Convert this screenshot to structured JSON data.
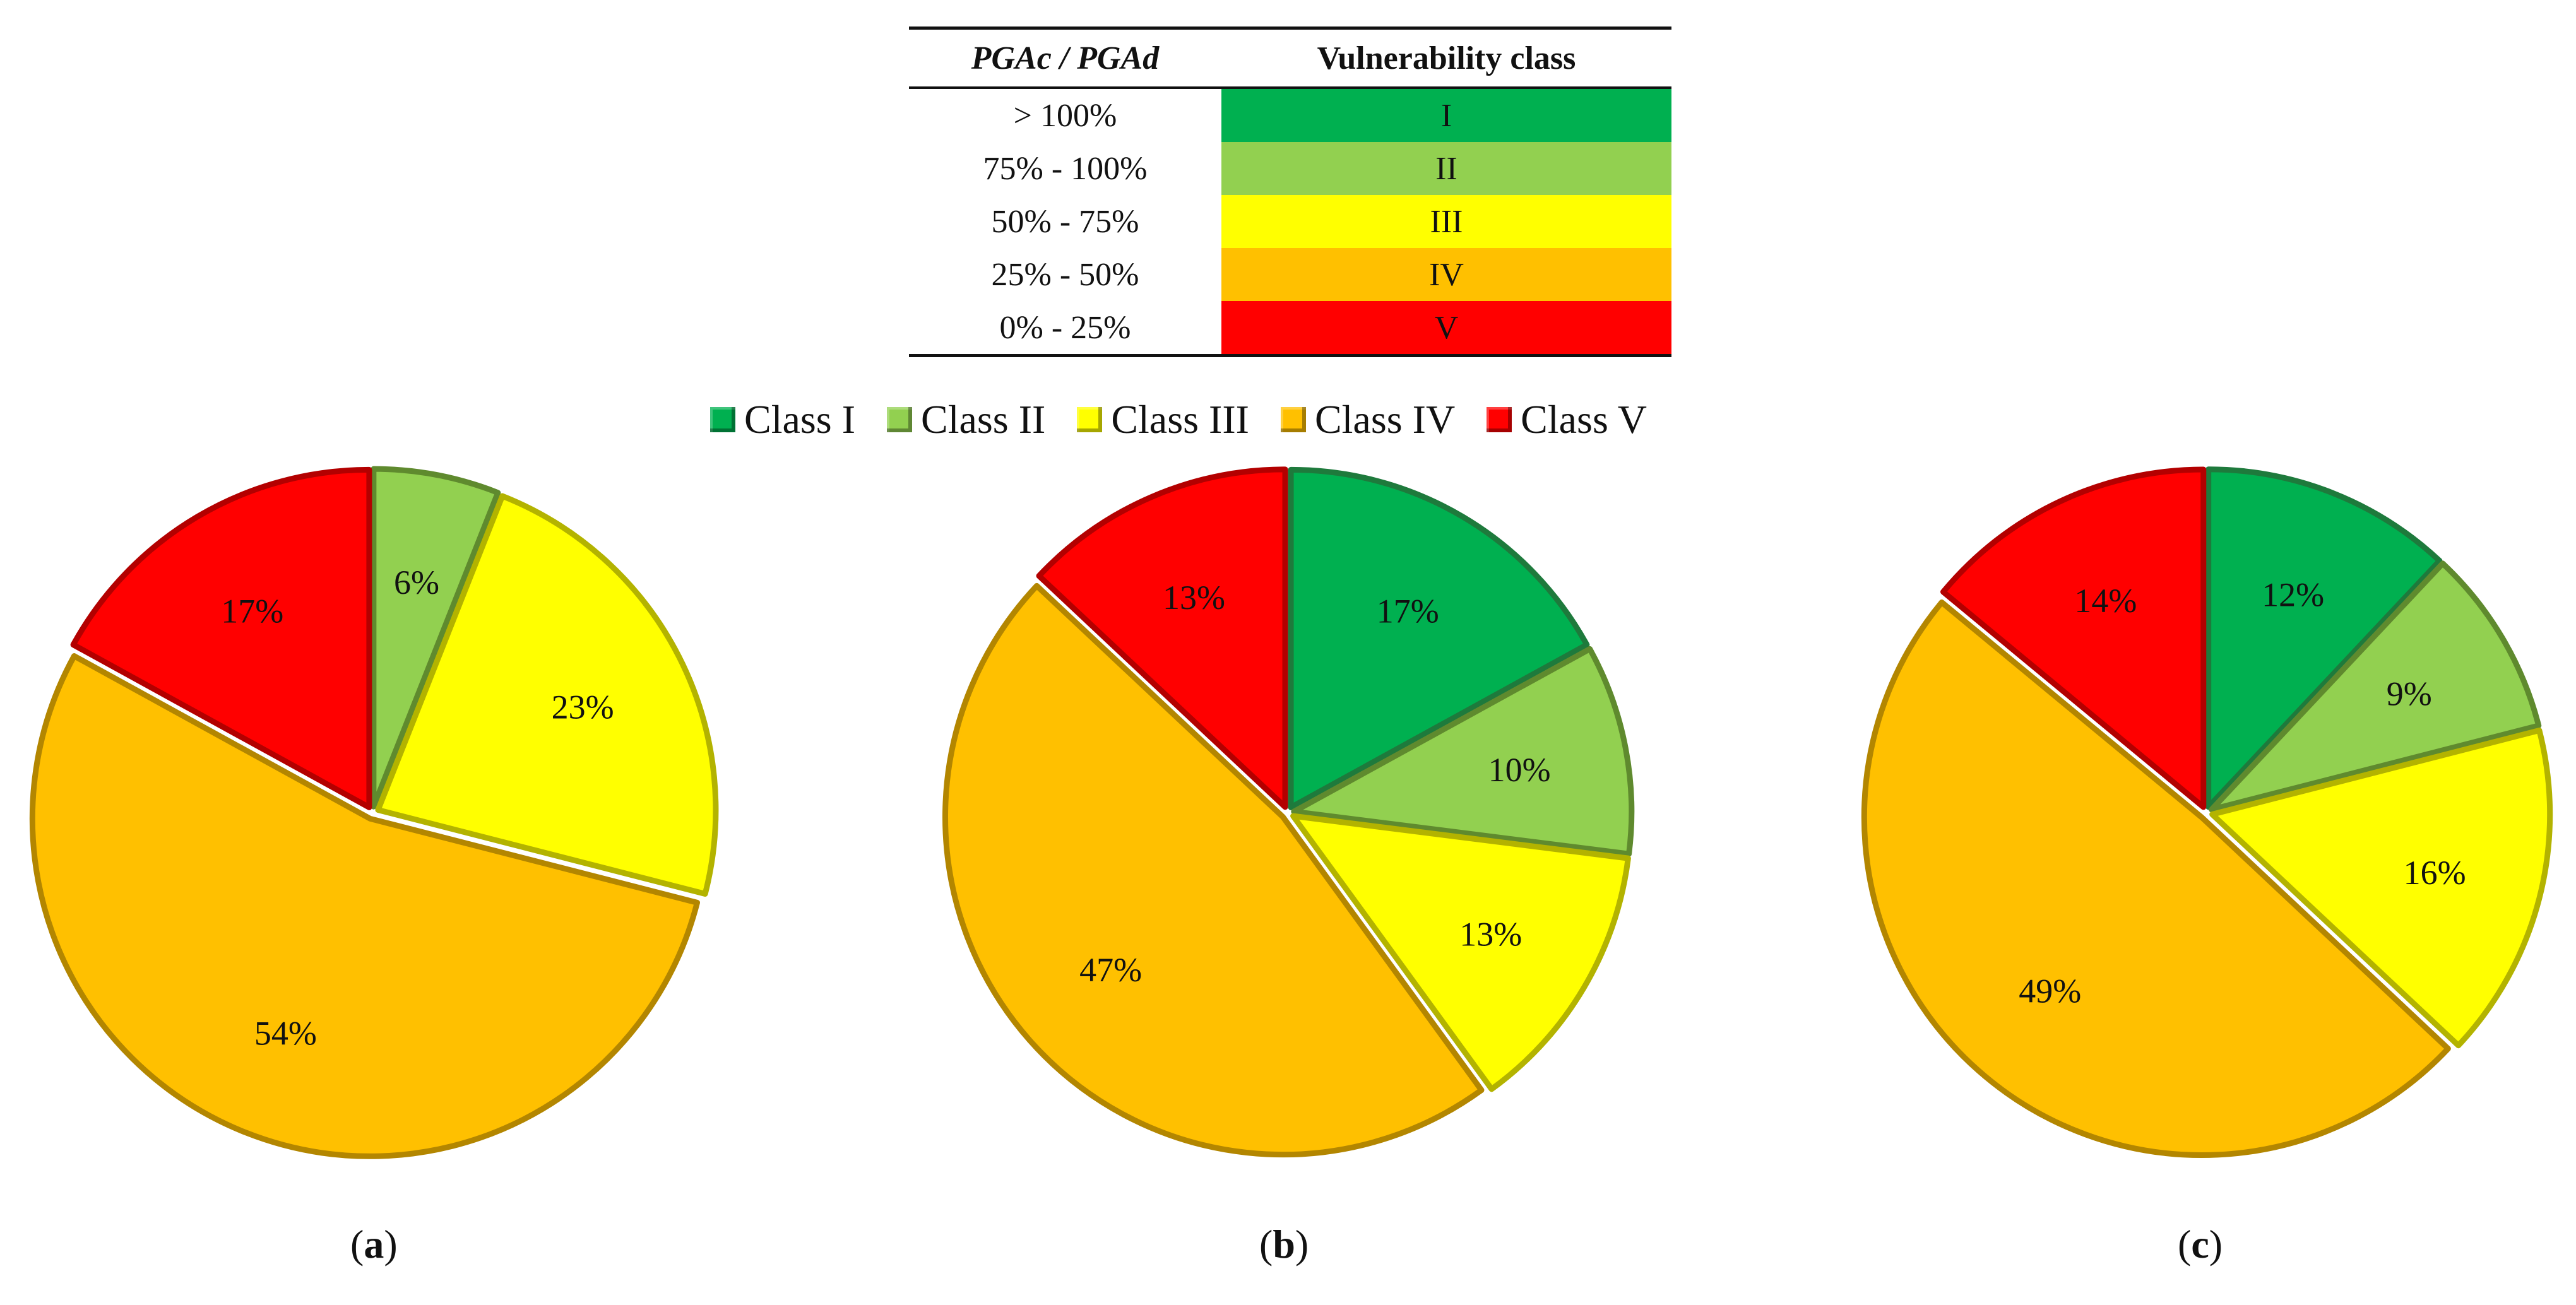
{
  "table": {
    "headers": [
      "PGAc / PGAd",
      "Vulnerability class"
    ],
    "rows": [
      {
        "range": "> 100%",
        "class": "I",
        "color": "#00b050"
      },
      {
        "range": "75% - 100%",
        "class": "II",
        "color": "#92d050"
      },
      {
        "range": "50% - 75%",
        "class": "III",
        "color": "#ffff00"
      },
      {
        "range": "25% - 50%",
        "class": "IV",
        "color": "#ffc000"
      },
      {
        "range": "0% - 25%",
        "class": "V",
        "color": "#ff0000"
      }
    ]
  },
  "chart_data": [
    {
      "type": "pie",
      "panel": "a",
      "categories": [
        "Class I",
        "Class II",
        "Class III",
        "Class IV",
        "Class V"
      ],
      "values": [
        0,
        6,
        23,
        54,
        17
      ],
      "labels": [
        "",
        "6%",
        "23%",
        "54%",
        "17%"
      ]
    },
    {
      "type": "pie",
      "panel": "b",
      "categories": [
        "Class I",
        "Class II",
        "Class III",
        "Class IV",
        "Class V"
      ],
      "values": [
        17,
        10,
        13,
        47,
        13
      ],
      "labels": [
        "17%",
        "10%",
        "13%",
        "47%",
        "13%"
      ]
    },
    {
      "type": "pie",
      "panel": "c",
      "categories": [
        "Class I",
        "Class II",
        "Class III",
        "Class IV",
        "Class V"
      ],
      "values": [
        12,
        9,
        16,
        49,
        14
      ],
      "labels": [
        "12%",
        "9%",
        "16%",
        "49%",
        "14%"
      ]
    }
  ],
  "legend": [
    {
      "label": "Class I",
      "color": "#00b050"
    },
    {
      "label": "Class II",
      "color": "#92d050"
    },
    {
      "label": "Class III",
      "color": "#ffff00"
    },
    {
      "label": "Class IV",
      "color": "#ffc000"
    },
    {
      "label": "Class V",
      "color": "#ff0000"
    }
  ],
  "panel_labels": [
    "a",
    "b",
    "c"
  ]
}
